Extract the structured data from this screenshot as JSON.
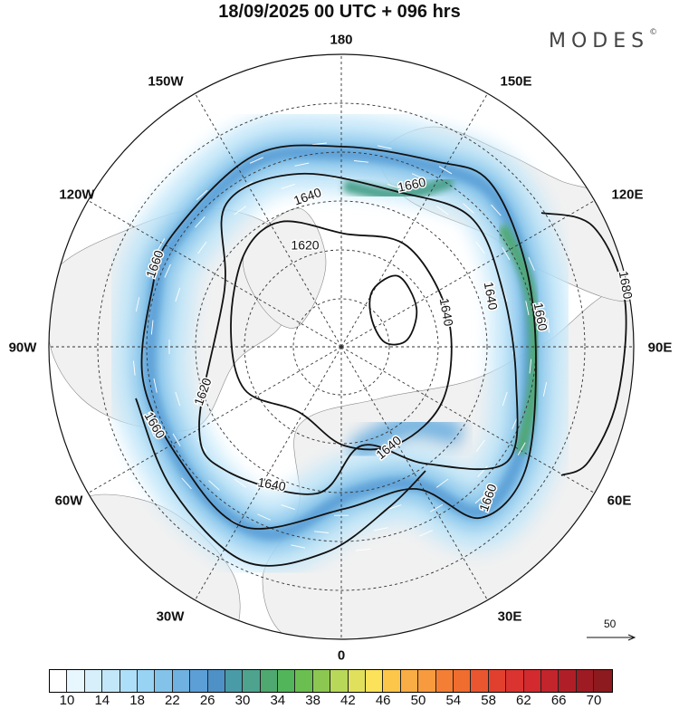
{
  "title": "18/09/2025  00 UTC  + 096 hrs",
  "logo": {
    "text": "MODES",
    "mark": "©"
  },
  "longitude_labels": {
    "lon_180": "180",
    "lon_150e": "150E",
    "lon_120e": "120E",
    "lon_90e": "90E",
    "lon_60e": "60E",
    "lon_30e": "30E",
    "lon_0": "0",
    "lon_30w": "30W",
    "lon_60w": "60W",
    "lon_90w": "90W",
    "lon_120w": "120W",
    "lon_150w": "150W"
  },
  "contour_labels": [
    "1660",
    "1640",
    "1620",
    "1640",
    "1660",
    "1680",
    "1660",
    "1640",
    "1620",
    "1640",
    "1660",
    "1660",
    "1640"
  ],
  "vector_reference": {
    "label": "50"
  },
  "colorbar": {
    "colors": [
      "#ffffff",
      "#e8f6fd",
      "#d6effb",
      "#c2e7f9",
      "#addff8",
      "#98d3f3",
      "#83c3ea",
      "#6fb1e0",
      "#5c9fd6",
      "#4d91c6",
      "#4a9ba8",
      "#4ea38f",
      "#4fa86f",
      "#52b55a",
      "#6bbf50",
      "#8cc851",
      "#b8d85a",
      "#e0e05c",
      "#fbe25a",
      "#fcc64a",
      "#f9ad45",
      "#f89a3e",
      "#f47e33",
      "#f06d30",
      "#ea5630",
      "#e2402f",
      "#db3330",
      "#d32a2f",
      "#c2252c",
      "#b01f27",
      "#9e1b23",
      "#8c1a1e"
    ],
    "tick_labels": [
      "10",
      "14",
      "18",
      "22",
      "26",
      "30",
      "34",
      "38",
      "42",
      "46",
      "50",
      "54",
      "58",
      "62",
      "66",
      "70"
    ]
  }
}
